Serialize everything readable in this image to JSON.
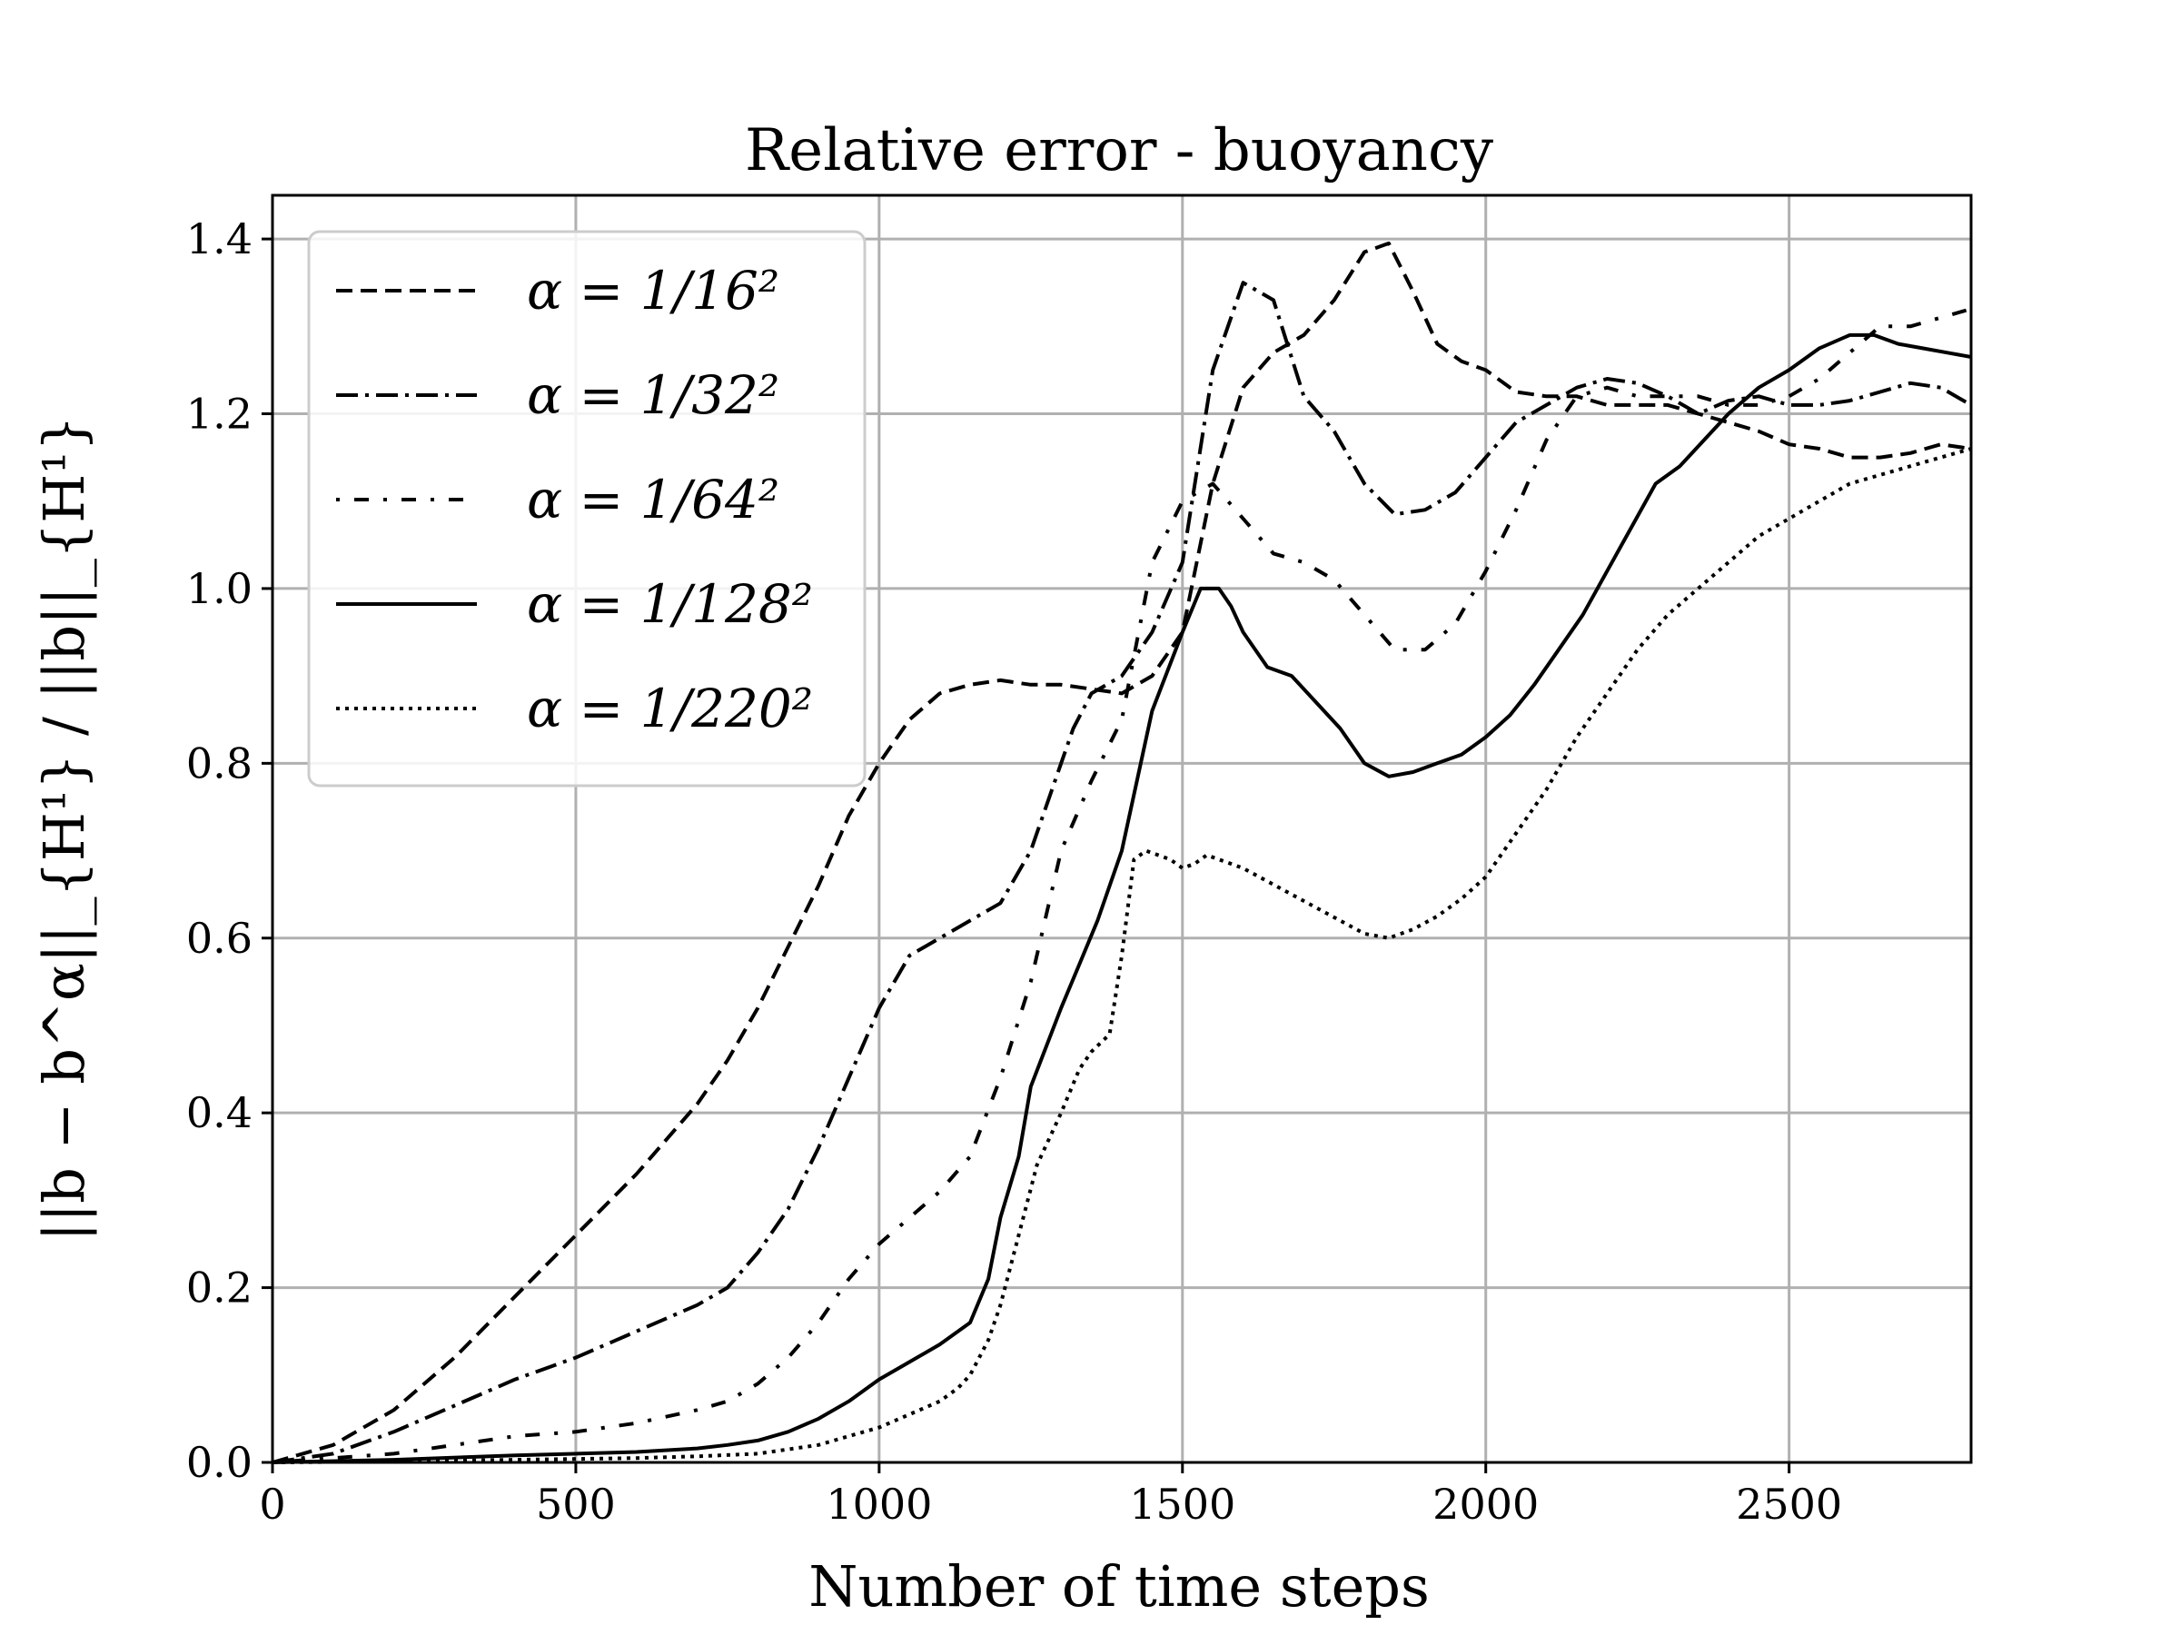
{
  "chart_data": {
    "type": "line",
    "title": "Relative error - buoyancy",
    "xlabel": "Number of time steps",
    "ylabel": "||b − b^α||_{H¹} / ||b||_{H¹}",
    "xlim": [
      0,
      2800
    ],
    "ylim": [
      0,
      1.45
    ],
    "xticks": [
      "0",
      "500",
      "1000",
      "1500",
      "2000",
      "2500"
    ],
    "yticks": [
      "0.0",
      "0.2",
      "0.4",
      "0.6",
      "0.8",
      "1.0",
      "1.2",
      "1.4"
    ],
    "grid": true,
    "legend_position": "upper-left",
    "series": [
      {
        "name": "α = 1/16²",
        "style": "dashed",
        "x": [
          0,
          100,
          200,
          300,
          400,
          500,
          600,
          700,
          750,
          800,
          850,
          900,
          950,
          1000,
          1050,
          1100,
          1150,
          1200,
          1250,
          1300,
          1350,
          1400,
          1450,
          1500,
          1550,
          1600,
          1650,
          1700,
          1750,
          1800,
          1840,
          1880,
          1920,
          1960,
          2000,
          2050,
          2100,
          2150,
          2200,
          2250,
          2300,
          2350,
          2400,
          2450,
          2500,
          2550,
          2600,
          2650,
          2700,
          2750,
          2800
        ],
        "y": [
          0,
          0.02,
          0.06,
          0.12,
          0.19,
          0.26,
          0.33,
          0.41,
          0.46,
          0.52,
          0.59,
          0.66,
          0.74,
          0.8,
          0.85,
          0.88,
          0.89,
          0.895,
          0.89,
          0.89,
          0.885,
          0.88,
          0.9,
          0.95,
          1.12,
          1.23,
          1.27,
          1.29,
          1.33,
          1.385,
          1.395,
          1.34,
          1.28,
          1.26,
          1.25,
          1.225,
          1.22,
          1.22,
          1.21,
          1.21,
          1.21,
          1.2,
          1.19,
          1.18,
          1.165,
          1.16,
          1.15,
          1.15,
          1.155,
          1.165,
          1.16
        ]
      },
      {
        "name": "α = 1/32²",
        "style": "dashdot",
        "x": [
          0,
          100,
          200,
          300,
          400,
          500,
          600,
          700,
          750,
          800,
          850,
          900,
          950,
          1000,
          1050,
          1100,
          1150,
          1200,
          1250,
          1300,
          1320,
          1350,
          1400,
          1450,
          1500,
          1550,
          1600,
          1650,
          1700,
          1750,
          1800,
          1850,
          1900,
          1950,
          2000,
          2050,
          2100,
          2150,
          2200,
          2250,
          2300,
          2350,
          2400,
          2450,
          2500,
          2550,
          2600,
          2650,
          2700,
          2750,
          2800
        ],
        "y": [
          0,
          0.01,
          0.035,
          0.065,
          0.095,
          0.12,
          0.15,
          0.18,
          0.2,
          0.24,
          0.29,
          0.36,
          0.44,
          0.52,
          0.58,
          0.6,
          0.62,
          0.64,
          0.7,
          0.8,
          0.84,
          0.88,
          0.9,
          0.95,
          1.03,
          1.25,
          1.35,
          1.33,
          1.22,
          1.18,
          1.12,
          1.085,
          1.09,
          1.11,
          1.15,
          1.19,
          1.21,
          1.23,
          1.24,
          1.235,
          1.22,
          1.2,
          1.215,
          1.22,
          1.21,
          1.21,
          1.215,
          1.225,
          1.235,
          1.23,
          1.21
        ]
      },
      {
        "name": "α = 1/64²",
        "style": "loosely-dashdotted",
        "x": [
          0,
          100,
          200,
          300,
          400,
          500,
          600,
          700,
          750,
          800,
          850,
          900,
          950,
          1000,
          1050,
          1100,
          1150,
          1200,
          1250,
          1300,
          1350,
          1400,
          1450,
          1500,
          1550,
          1600,
          1650,
          1700,
          1750,
          1800,
          1850,
          1900,
          1950,
          2000,
          2050,
          2100,
          2150,
          2200,
          2250,
          2300,
          2350,
          2400,
          2450,
          2500,
          2550,
          2600,
          2650,
          2700,
          2750,
          2800
        ],
        "y": [
          0,
          0.005,
          0.01,
          0.02,
          0.03,
          0.035,
          0.045,
          0.06,
          0.07,
          0.09,
          0.12,
          0.16,
          0.21,
          0.25,
          0.28,
          0.31,
          0.35,
          0.44,
          0.55,
          0.7,
          0.78,
          0.85,
          1.03,
          1.1,
          1.12,
          1.08,
          1.04,
          1.03,
          1.01,
          0.97,
          0.93,
          0.93,
          0.96,
          1.02,
          1.09,
          1.17,
          1.22,
          1.23,
          1.22,
          1.22,
          1.22,
          1.21,
          1.21,
          1.22,
          1.24,
          1.27,
          1.3,
          1.3,
          1.31,
          1.32
        ]
      },
      {
        "name": "α = 1/128²",
        "style": "solid",
        "x": [
          0,
          200,
          400,
          600,
          700,
          750,
          800,
          850,
          900,
          950,
          1000,
          1050,
          1100,
          1120,
          1150,
          1180,
          1200,
          1230,
          1250,
          1300,
          1330,
          1360,
          1400,
          1450,
          1500,
          1530,
          1560,
          1580,
          1600,
          1640,
          1680,
          1720,
          1760,
          1800,
          1840,
          1880,
          1920,
          1960,
          2000,
          2040,
          2080,
          2120,
          2160,
          2200,
          2240,
          2280,
          2320,
          2360,
          2400,
          2450,
          2500,
          2550,
          2600,
          2640,
          2680,
          2720,
          2760,
          2800
        ],
        "y": [
          0,
          0.003,
          0.008,
          0.012,
          0.016,
          0.02,
          0.025,
          0.035,
          0.05,
          0.07,
          0.095,
          0.115,
          0.135,
          0.145,
          0.16,
          0.21,
          0.28,
          0.35,
          0.43,
          0.52,
          0.57,
          0.62,
          0.7,
          0.86,
          0.95,
          1.0,
          1.0,
          0.98,
          0.95,
          0.91,
          0.9,
          0.87,
          0.84,
          0.8,
          0.785,
          0.79,
          0.8,
          0.81,
          0.83,
          0.855,
          0.89,
          0.93,
          0.97,
          1.02,
          1.07,
          1.12,
          1.14,
          1.17,
          1.2,
          1.23,
          1.25,
          1.275,
          1.29,
          1.29,
          1.28,
          1.275,
          1.27,
          1.265
        ]
      },
      {
        "name": "α = 1/220²",
        "style": "dotted",
        "x": [
          0,
          200,
          400,
          600,
          700,
          800,
          850,
          900,
          950,
          1000,
          1050,
          1100,
          1130,
          1150,
          1180,
          1200,
          1230,
          1260,
          1300,
          1330,
          1350,
          1380,
          1400,
          1420,
          1440,
          1460,
          1480,
          1500,
          1520,
          1540,
          1560,
          1600,
          1640,
          1680,
          1720,
          1760,
          1800,
          1840,
          1880,
          1920,
          1960,
          2000,
          2050,
          2100,
          2150,
          2200,
          2250,
          2300,
          2350,
          2400,
          2450,
          2500,
          2550,
          2600,
          2650,
          2700,
          2750,
          2800
        ],
        "y": [
          0,
          0.001,
          0.003,
          0.005,
          0.007,
          0.01,
          0.015,
          0.02,
          0.03,
          0.04,
          0.055,
          0.07,
          0.085,
          0.1,
          0.14,
          0.18,
          0.26,
          0.34,
          0.4,
          0.45,
          0.47,
          0.49,
          0.58,
          0.69,
          0.7,
          0.695,
          0.69,
          0.68,
          0.685,
          0.695,
          0.69,
          0.68,
          0.665,
          0.65,
          0.635,
          0.62,
          0.605,
          0.6,
          0.61,
          0.625,
          0.645,
          0.67,
          0.72,
          0.77,
          0.83,
          0.88,
          0.93,
          0.97,
          1.0,
          1.03,
          1.06,
          1.08,
          1.1,
          1.12,
          1.13,
          1.14,
          1.15,
          1.16
        ]
      }
    ]
  }
}
